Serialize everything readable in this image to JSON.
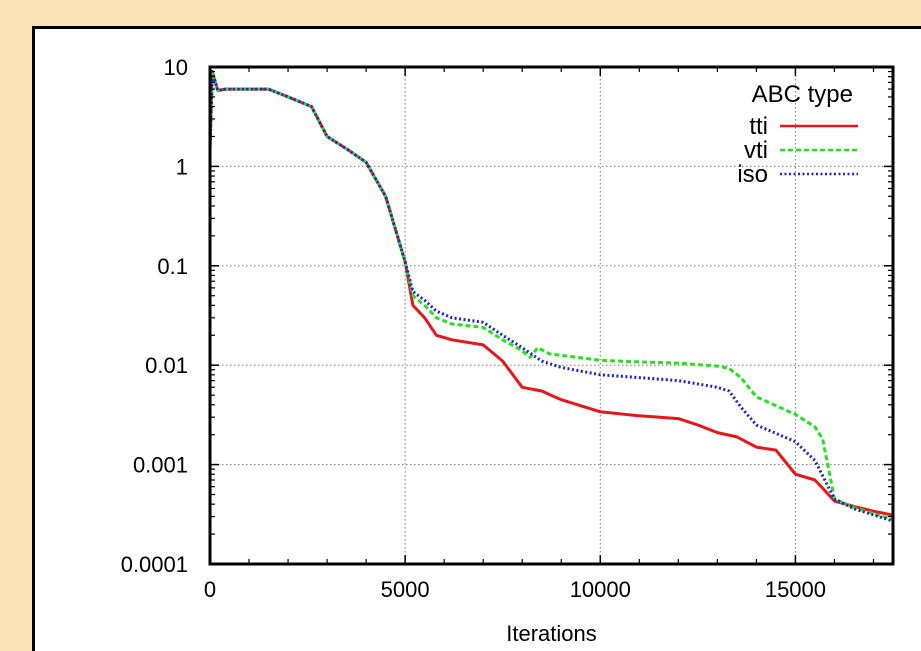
{
  "chart_data": {
    "type": "line",
    "title": "",
    "xlabel": "Iterations",
    "ylabel": "",
    "xlim": [
      0,
      17500
    ],
    "ylim": [
      0.0001,
      10
    ],
    "yscale": "log",
    "grid": true,
    "x_ticks": [
      {
        "value": 0,
        "label": "0"
      },
      {
        "value": 5000,
        "label": "5000"
      },
      {
        "value": 10000,
        "label": "10000"
      },
      {
        "value": 15000,
        "label": "15000"
      }
    ],
    "y_ticks": [
      {
        "value": 10,
        "label": "10"
      },
      {
        "value": 1,
        "label": "1"
      },
      {
        "value": 0.1,
        "label": "0.1"
      },
      {
        "value": 0.01,
        "label": "0.01"
      },
      {
        "value": 0.001,
        "label": "0.001"
      },
      {
        "value": 0.0001,
        "label": "0.0001"
      }
    ],
    "legend": {
      "title": "ABC type",
      "position": "top-right"
    },
    "series": [
      {
        "name": "tti",
        "color": "#e8161b",
        "dash": "solid",
        "points": [
          [
            0,
            1.5
          ],
          [
            60,
            9.0
          ],
          [
            200,
            5.8
          ],
          [
            400,
            6.0
          ],
          [
            1500,
            6.0
          ],
          [
            2000,
            5.0
          ],
          [
            2600,
            4.0
          ],
          [
            3000,
            2.0
          ],
          [
            3500,
            1.5
          ],
          [
            4000,
            1.1
          ],
          [
            4500,
            0.5
          ],
          [
            5000,
            0.11
          ],
          [
            5200,
            0.04
          ],
          [
            5500,
            0.03
          ],
          [
            5800,
            0.02
          ],
          [
            6200,
            0.018
          ],
          [
            7000,
            0.016
          ],
          [
            7500,
            0.011
          ],
          [
            8000,
            0.006
          ],
          [
            8500,
            0.0055
          ],
          [
            9000,
            0.0045
          ],
          [
            10000,
            0.0034
          ],
          [
            11000,
            0.0031
          ],
          [
            12000,
            0.0029
          ],
          [
            12500,
            0.0025
          ],
          [
            13000,
            0.0021
          ],
          [
            13500,
            0.0019
          ],
          [
            14000,
            0.0015
          ],
          [
            14500,
            0.0014
          ],
          [
            15000,
            0.0008
          ],
          [
            15500,
            0.0007
          ],
          [
            16000,
            0.00043
          ],
          [
            16500,
            0.00038
          ],
          [
            17000,
            0.00034
          ],
          [
            17500,
            0.00031
          ]
        ]
      },
      {
        "name": "vti",
        "color": "#22e31e",
        "dash": "dashed",
        "points": [
          [
            0,
            1.5
          ],
          [
            60,
            9.0
          ],
          [
            200,
            5.8
          ],
          [
            400,
            6.0
          ],
          [
            1500,
            6.0
          ],
          [
            2000,
            5.0
          ],
          [
            2600,
            4.0
          ],
          [
            3000,
            2.0
          ],
          [
            3500,
            1.5
          ],
          [
            4000,
            1.1
          ],
          [
            4500,
            0.5
          ],
          [
            5000,
            0.11
          ],
          [
            5200,
            0.05
          ],
          [
            5500,
            0.04
          ],
          [
            5800,
            0.03
          ],
          [
            6200,
            0.026
          ],
          [
            7000,
            0.024
          ],
          [
            7500,
            0.018
          ],
          [
            8000,
            0.014
          ],
          [
            8200,
            0.012
          ],
          [
            8400,
            0.015
          ],
          [
            8700,
            0.013
          ],
          [
            10000,
            0.0112
          ],
          [
            11000,
            0.0108
          ],
          [
            12000,
            0.0105
          ],
          [
            13000,
            0.0098
          ],
          [
            13300,
            0.0093
          ],
          [
            13600,
            0.0075
          ],
          [
            14000,
            0.0048
          ],
          [
            15000,
            0.0032
          ],
          [
            15500,
            0.0024
          ],
          [
            15700,
            0.0018
          ],
          [
            16000,
            0.00045
          ],
          [
            16500,
            0.00037
          ],
          [
            17500,
            0.00028
          ]
        ]
      },
      {
        "name": "iso",
        "color": "#1e20d8",
        "dash": "dotted",
        "points": [
          [
            0,
            1.5
          ],
          [
            60,
            9.0
          ],
          [
            200,
            5.8
          ],
          [
            400,
            6.0
          ],
          [
            1500,
            6.0
          ],
          [
            2000,
            5.0
          ],
          [
            2600,
            4.0
          ],
          [
            3000,
            2.0
          ],
          [
            3500,
            1.5
          ],
          [
            4000,
            1.1
          ],
          [
            4500,
            0.5
          ],
          [
            5000,
            0.11
          ],
          [
            5200,
            0.055
          ],
          [
            5500,
            0.045
          ],
          [
            5800,
            0.035
          ],
          [
            6200,
            0.03
          ],
          [
            7000,
            0.027
          ],
          [
            7500,
            0.02
          ],
          [
            8000,
            0.015
          ],
          [
            8500,
            0.011
          ],
          [
            9000,
            0.0095
          ],
          [
            10000,
            0.008
          ],
          [
            11000,
            0.0075
          ],
          [
            12000,
            0.007
          ],
          [
            13000,
            0.006
          ],
          [
            13300,
            0.0055
          ],
          [
            13600,
            0.0038
          ],
          [
            14000,
            0.0025
          ],
          [
            15000,
            0.0017
          ],
          [
            15500,
            0.0011
          ],
          [
            16000,
            0.00045
          ],
          [
            16500,
            0.00036
          ],
          [
            17500,
            0.00027
          ]
        ]
      }
    ]
  }
}
